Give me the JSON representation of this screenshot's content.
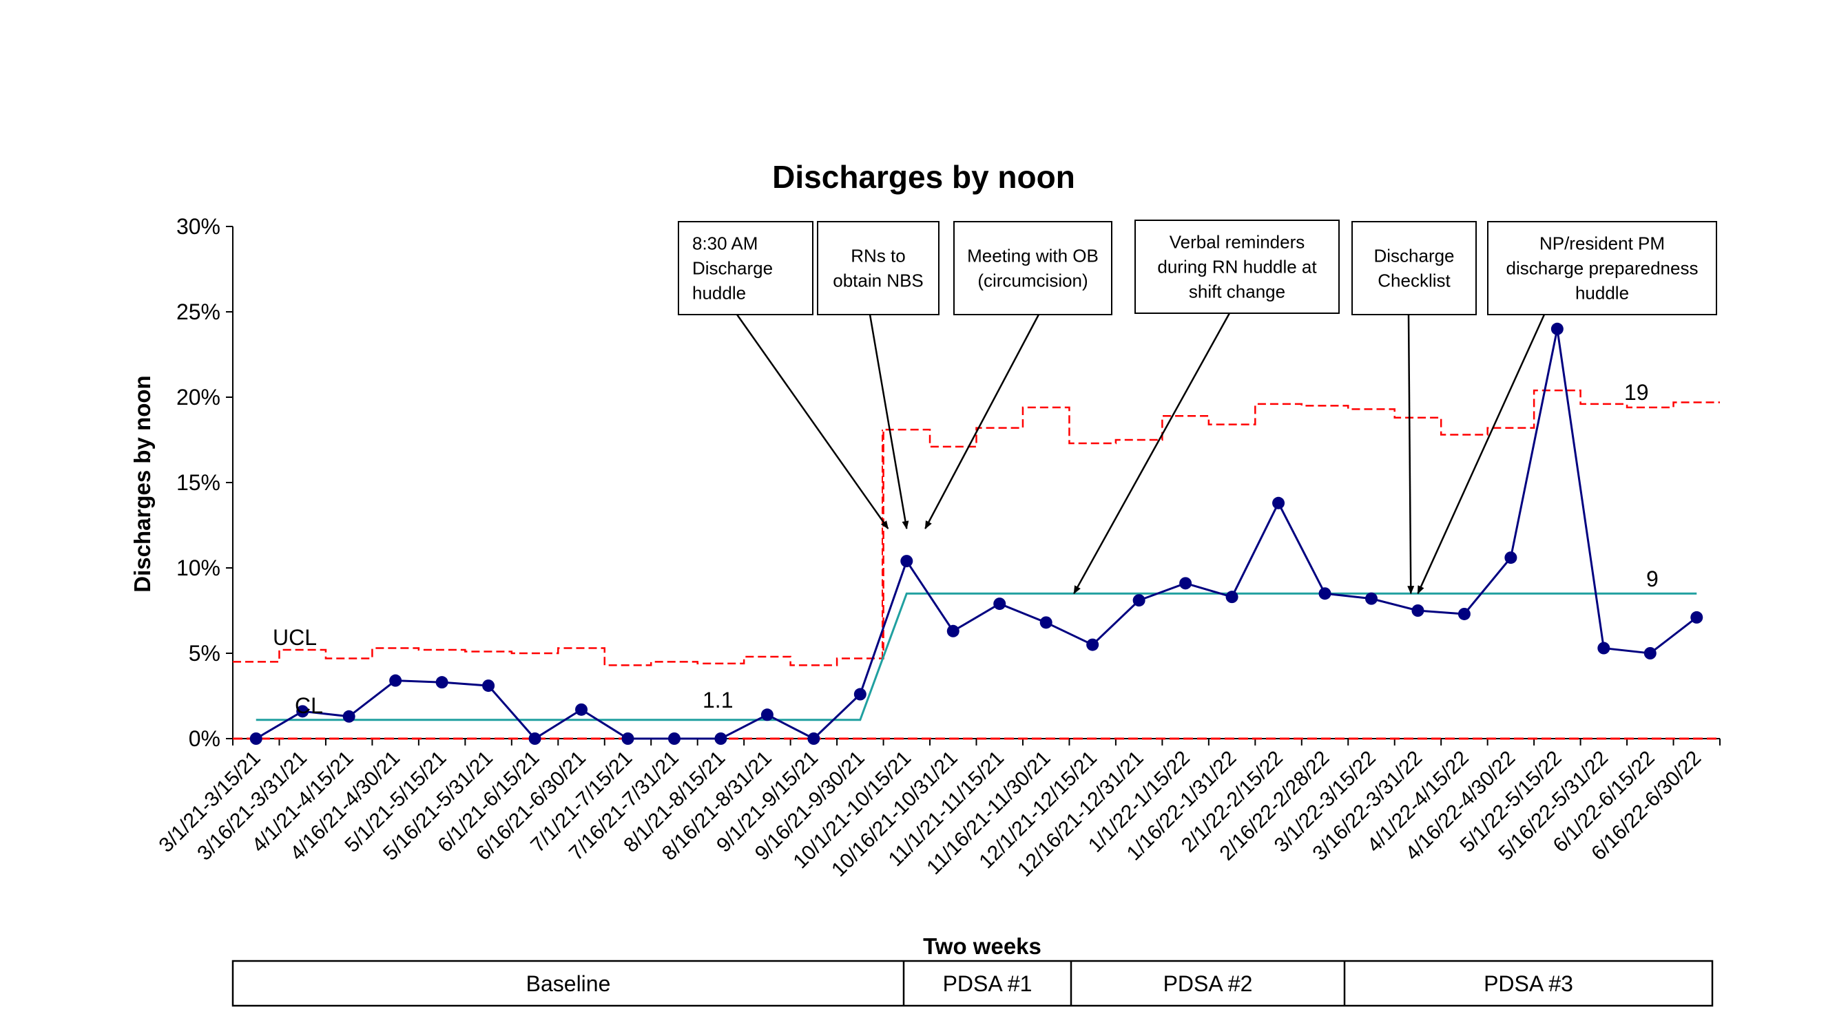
{
  "chart_data": {
    "type": "line",
    "title": "Discharges by noon",
    "ylabel": "Discharges by noon",
    "xlabel": "Two weeks",
    "ylim": [
      0,
      30
    ],
    "yticks": [
      "0%",
      "5%",
      "10%",
      "15%",
      "20%",
      "25%",
      "30%"
    ],
    "categories": [
      "3/1/21-3/15/21",
      "3/16/21-3/31/21",
      "4/1/21-4/15/21",
      "4/16/21-4/30/21",
      "5/1/21-5/15/21",
      "5/16/21-5/31/21",
      "6/1/21-6/15/21",
      "6/16/21-6/30/21",
      "7/1/21-7/15/21",
      "7/16/21-7/31/21",
      "8/1/21-8/15/21",
      "8/16/21-8/31/21",
      "9/1/21-9/15/21",
      "9/16/21-9/30/21",
      "10/1/21-10/15/21",
      "10/16/21-10/31/21",
      "11/1/21-11/15/21",
      "11/16/21-11/30/21",
      "12/1/21-12/15/21",
      "12/16/21-12/31/21",
      "1/1/22-1/15/22",
      "1/16/22-1/31/22",
      "2/1/22-2/15/22",
      "2/16/22-2/28/22",
      "3/1/22-3/15/22",
      "3/16/22-3/31/22",
      "4/1/22-4/15/22",
      "4/16/22-4/30/22",
      "5/1/22-5/15/22",
      "5/16/22-5/31/22",
      "6/1/22-6/15/22",
      "6/16/22-6/30/22"
    ],
    "series": [
      {
        "color": "#000080",
        "values": [
          0,
          1.6,
          1.3,
          3.4,
          3.3,
          3.1,
          0,
          1.7,
          0,
          0,
          0,
          1.4,
          0,
          2.6,
          10.4,
          6.3,
          7.9,
          6.8,
          5.5,
          8.1,
          9.1,
          8.3,
          13.8,
          8.5,
          8.2,
          7.5,
          7.3,
          10.6,
          24.0,
          5.3,
          5.0,
          7.1
        ]
      }
    ],
    "ucl": {
      "color": "#ff0000",
      "values": [
        4.5,
        5.2,
        4.7,
        5.3,
        5.2,
        5.1,
        5.0,
        5.3,
        4.3,
        4.5,
        4.4,
        4.8,
        4.3,
        4.7,
        18.1,
        17.1,
        18.2,
        19.4,
        17.3,
        17.5,
        18.9,
        18.4,
        19.6,
        19.5,
        19.3,
        18.8,
        17.8,
        18.2,
        20.4,
        19.6,
        19.4,
        19.7
      ]
    },
    "lcl": {
      "color": "#ff0000",
      "value": 0
    },
    "centerline": {
      "color": "#20a0a0",
      "baseline_value": 1.1,
      "baseline_points": 14,
      "shifted_value": 8.5
    },
    "labels": {
      "ucl": "UCL",
      "cl": "CL",
      "baseline_cl": "1.1",
      "shifted_cl": "9",
      "shifted_ucl": "19"
    },
    "annotations": [
      {
        "lines": [
          "8:30 AM",
          "Discharge",
          "huddle"
        ],
        "align": "left",
        "target_index": 13.6,
        "target_value": 12.3
      },
      {
        "lines": [
          "RNs to",
          "obtain NBS"
        ],
        "align": "center",
        "target_index": 14.0,
        "target_value": 12.3
      },
      {
        "lines": [
          "Meeting with OB",
          "(circumcision)"
        ],
        "align": "center",
        "target_index": 14.4,
        "target_value": 12.3
      },
      {
        "lines": [
          "Verbal reminders",
          "during RN huddle at",
          "shift change"
        ],
        "align": "center",
        "target_index": 17.6,
        "target_value": 8.5
      },
      {
        "lines": [
          "Discharge",
          "Checklist"
        ],
        "align": "center",
        "target_index": 24.85,
        "target_value": 8.5
      },
      {
        "lines": [
          "NP/resident PM",
          "discharge preparedness",
          "huddle"
        ],
        "align": "center",
        "target_index": 25.0,
        "target_value": 8.5
      }
    ],
    "phases": [
      {
        "label": "Baseline",
        "start": 0,
        "end": 13.5
      },
      {
        "label": "PDSA #1",
        "start": 13.5,
        "end": 17
      },
      {
        "label": "PDSA #2",
        "start": 17,
        "end": 22.9
      },
      {
        "label": "PDSA #3",
        "start": 22.9,
        "end": 31.9
      }
    ],
    "grid": false,
    "legend": "none"
  }
}
